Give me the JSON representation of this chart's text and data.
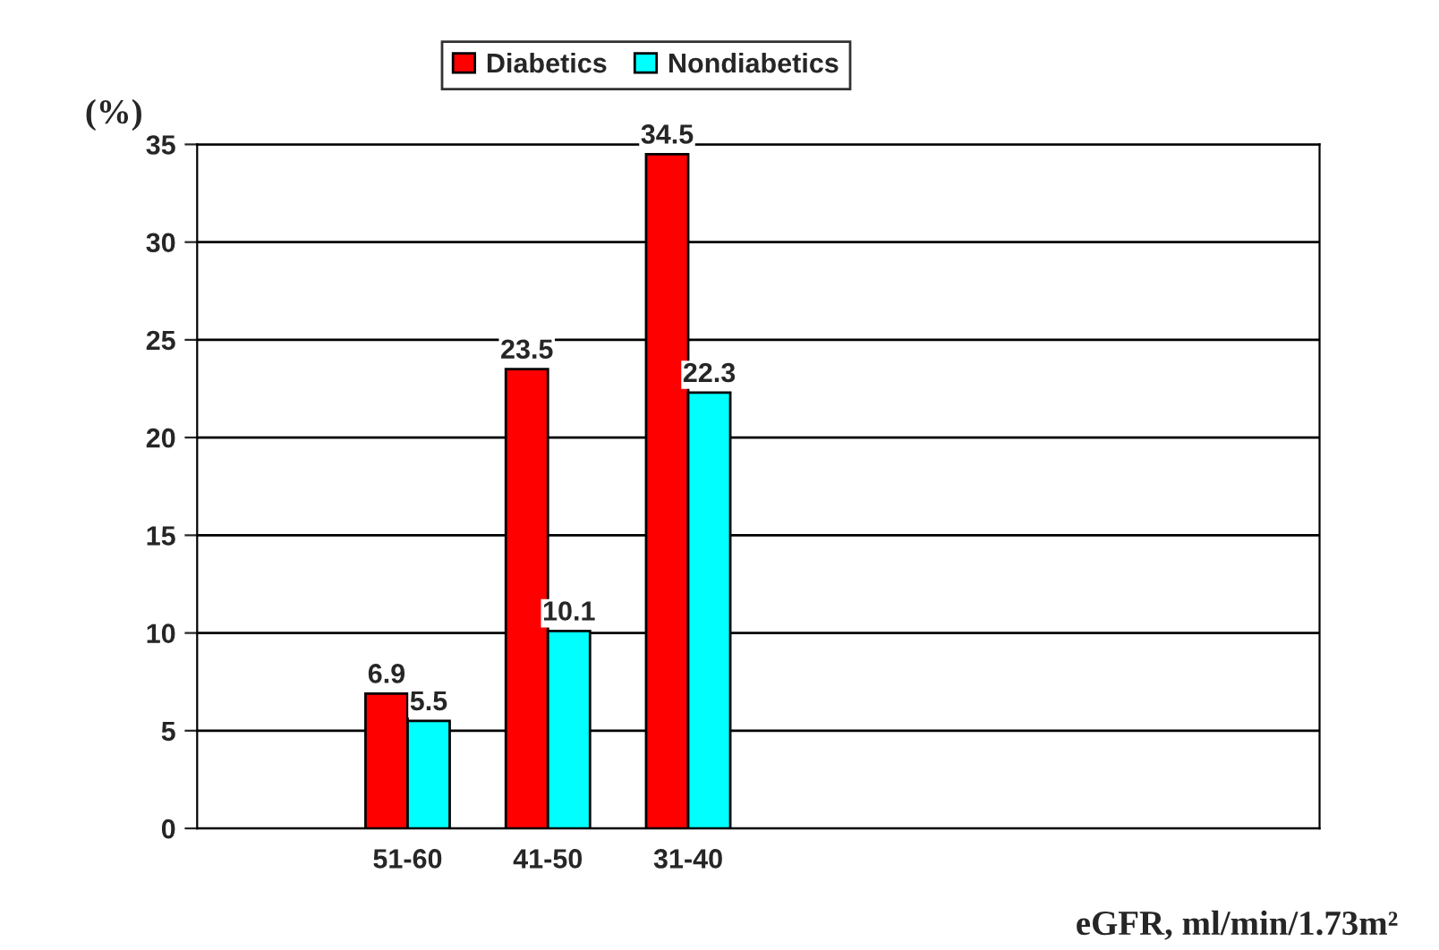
{
  "chart_data": {
    "type": "bar",
    "categories": [
      null,
      "51-60",
      "41-50",
      "31-40",
      null,
      null,
      null,
      null
    ],
    "series": [
      {
        "name": "Diabetics",
        "color": "#ff0000",
        "values": [
          null,
          6.9,
          23.5,
          34.5,
          null,
          null,
          null,
          null
        ]
      },
      {
        "name": "Nondiabetics",
        "color": "#00ffff",
        "values": [
          null,
          5.5,
          10.1,
          22.3,
          null,
          null,
          null,
          null
        ]
      }
    ],
    "ylabel": "(%)",
    "xlabel": "eGFR, ml/min/1.73m²",
    "ylim": [
      0,
      35
    ],
    "yticks": [
      0,
      5,
      10,
      15,
      20,
      25,
      30,
      35
    ],
    "grid": "y",
    "legend": "top",
    "data_labels": true
  }
}
